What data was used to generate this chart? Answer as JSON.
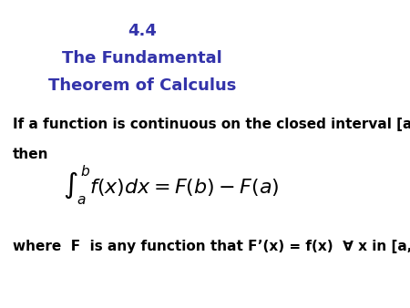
{
  "title_line1": "4.4",
  "title_line2": "The Fundamental",
  "title_line3": "Theorem of Calculus",
  "title_color": "#3333AA",
  "title_fontsize": 13,
  "body_color": "#000000",
  "body_fontsize": 11,
  "text_line1": "If a function is continuous on the closed interval [a, b],",
  "text_line2": "then",
  "integral_formula": "$\\int_a^b f(x)dx = F(b) - F(a)$",
  "text_line3": "where  F  is any function that F’(x) = f(x)  ∀ x in [a, b].",
  "background_color": "#ffffff"
}
